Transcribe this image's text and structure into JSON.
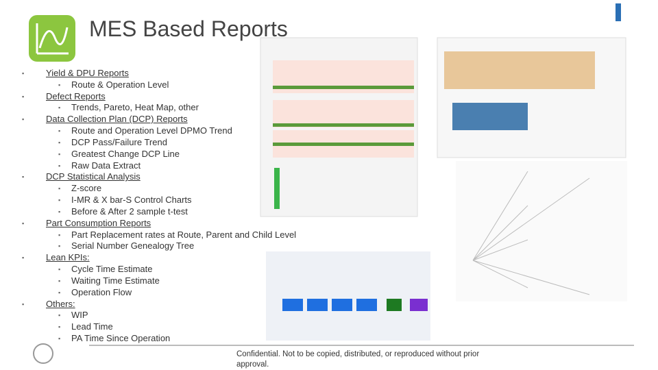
{
  "title": "MES Based Reports",
  "sections": [
    {
      "title": "Yield & DPU Reports",
      "items": [
        "Route & Operation Level"
      ]
    },
    {
      "title": "Defect Reports",
      "items": [
        "Trends, Pareto, Heat Map, other"
      ]
    },
    {
      "title": "Data Collection Plan (DCP) Reports",
      "items": [
        "Route and Operation Level DPMO Trend",
        "DCP Pass/Failure Trend",
        "Greatest Change DCP Line",
        "Raw Data Extract"
      ]
    },
    {
      "title": "DCP Statistical Analysis",
      "items": [
        "Z-score",
        "I-MR & X bar-S Control Charts",
        "Before & After 2 sample t-test"
      ]
    },
    {
      "title": "Part Consumption Reports",
      "items": [
        "Part Replacement rates at Route, Parent and Child Level",
        "Serial Number Genealogy Tree"
      ]
    },
    {
      "title": "Lean KPIs:",
      "items": [
        "Cycle Time Estimate",
        "Waiting Time Estimate",
        "Operation Flow"
      ]
    },
    {
      "title": "Others:",
      "items": [
        "WIP",
        "Lead Time",
        "PA Time Since Operation"
      ]
    }
  ],
  "footer": "Confidential. Not to be copied, distributed, or reproduced without prior approval."
}
